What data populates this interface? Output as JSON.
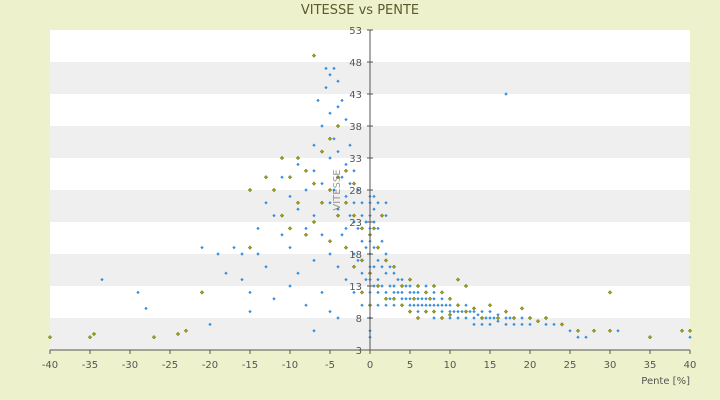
{
  "chart_data": {
    "type": "scatter",
    "title": "VITESSE vs PENTE",
    "xlabel": "Pente [%]",
    "ylabel": "VITESSE",
    "xlim": [
      -40,
      40
    ],
    "ylim": [
      3,
      53
    ],
    "x_ticks": [
      "-40",
      "-35",
      "-30",
      "-25",
      "-20",
      "-15",
      "-10",
      "-5",
      "0",
      "5",
      "10",
      "15",
      "20",
      "25",
      "30",
      "35",
      "40"
    ],
    "y_ticks": [
      "3",
      "8",
      "13",
      "18",
      "23",
      "28",
      "33",
      "38",
      "43",
      "48",
      "53"
    ],
    "grid": "horizontal-bands",
    "legend": "none",
    "colors": {
      "series_a": "#3a8fd8",
      "series_b": "#9aa018",
      "band": "#efefef",
      "axis": "#555555"
    },
    "series": [
      {
        "color": "#3a8fd8",
        "points": [
          [
            -33.5,
            14
          ],
          [
            -29,
            12
          ],
          [
            -28,
            9.5
          ],
          [
            -21,
            12
          ],
          [
            -21,
            19
          ],
          [
            -20,
            7
          ],
          [
            -19,
            18
          ],
          [
            -18,
            15
          ],
          [
            -17,
            19
          ],
          [
            -16,
            18
          ],
          [
            -16,
            14
          ],
          [
            -15,
            12
          ],
          [
            -15,
            9
          ],
          [
            -14,
            22
          ],
          [
            -14,
            18
          ],
          [
            -13,
            16
          ],
          [
            -13,
            26
          ],
          [
            -12,
            24
          ],
          [
            -12,
            11
          ],
          [
            -11,
            30
          ],
          [
            -11,
            21
          ],
          [
            -10,
            27
          ],
          [
            -10,
            19
          ],
          [
            -10,
            13
          ],
          [
            -9,
            32
          ],
          [
            -9,
            25
          ],
          [
            -9,
            15
          ],
          [
            -8,
            28
          ],
          [
            -8,
            22
          ],
          [
            -8,
            10
          ],
          [
            -7,
            35
          ],
          [
            -7,
            31
          ],
          [
            -7,
            24
          ],
          [
            -7,
            17
          ],
          [
            -7,
            6
          ],
          [
            -6.5,
            42
          ],
          [
            -6,
            38
          ],
          [
            -6,
            29
          ],
          [
            -6,
            21
          ],
          [
            -6,
            12
          ],
          [
            -5.5,
            47
          ],
          [
            -5.5,
            44
          ],
          [
            -5,
            46
          ],
          [
            -5,
            40
          ],
          [
            -5,
            33
          ],
          [
            -5,
            26
          ],
          [
            -5,
            18
          ],
          [
            -5,
            9
          ],
          [
            -4.5,
            47
          ],
          [
            -4.5,
            36
          ],
          [
            -4.5,
            28
          ],
          [
            -4,
            45
          ],
          [
            -4,
            41
          ],
          [
            -4,
            34
          ],
          [
            -4,
            25
          ],
          [
            -4,
            16
          ],
          [
            -4,
            8
          ],
          [
            -3.5,
            42
          ],
          [
            -3.5,
            30
          ],
          [
            -3.5,
            21
          ],
          [
            -3,
            39
          ],
          [
            -3,
            32
          ],
          [
            -3,
            27
          ],
          [
            -3,
            22
          ],
          [
            -3,
            14
          ],
          [
            -2.5,
            35
          ],
          [
            -2.5,
            29
          ],
          [
            -2.5,
            24
          ],
          [
            -2,
            31
          ],
          [
            -2,
            26
          ],
          [
            -2,
            23
          ],
          [
            -2,
            18
          ],
          [
            -2,
            12
          ],
          [
            -1.5,
            28
          ],
          [
            -1.5,
            22
          ],
          [
            -1.5,
            17
          ],
          [
            -1,
            26
          ],
          [
            -1,
            24
          ],
          [
            -1,
            20
          ],
          [
            -1,
            15
          ],
          [
            -1,
            10
          ],
          [
            -0.5,
            23
          ],
          [
            -0.5,
            19
          ],
          [
            -0.5,
            14
          ],
          [
            0,
            27
          ],
          [
            0,
            26
          ],
          [
            0,
            24
          ],
          [
            0,
            22
          ],
          [
            0,
            20
          ],
          [
            0,
            18
          ],
          [
            0,
            16
          ],
          [
            0,
            14
          ],
          [
            0,
            12
          ],
          [
            0,
            10
          ],
          [
            0,
            8
          ],
          [
            0,
            6
          ],
          [
            0,
            5
          ],
          [
            0.5,
            27
          ],
          [
            0.5,
            25
          ],
          [
            0.5,
            23
          ],
          [
            0.5,
            19
          ],
          [
            0.5,
            16
          ],
          [
            0.5,
            13
          ],
          [
            1,
            26
          ],
          [
            1,
            22
          ],
          [
            1,
            17
          ],
          [
            1,
            14
          ],
          [
            1,
            12
          ],
          [
            1,
            10
          ],
          [
            1.5,
            20
          ],
          [
            1.5,
            16
          ],
          [
            1.5,
            13
          ],
          [
            2,
            26
          ],
          [
            2,
            24
          ],
          [
            2,
            18
          ],
          [
            2,
            15
          ],
          [
            2,
            12
          ],
          [
            2,
            10
          ],
          [
            2.5,
            16
          ],
          [
            2.5,
            13
          ],
          [
            2.5,
            11
          ],
          [
            3,
            15
          ],
          [
            3,
            13
          ],
          [
            3,
            12
          ],
          [
            3,
            10
          ],
          [
            3.5,
            14
          ],
          [
            3.5,
            12
          ],
          [
            4,
            14
          ],
          [
            4,
            12
          ],
          [
            4,
            11
          ],
          [
            4,
            10
          ],
          [
            4.5,
            13
          ],
          [
            4.5,
            11
          ],
          [
            5,
            13
          ],
          [
            5,
            12
          ],
          [
            5,
            11
          ],
          [
            5,
            10
          ],
          [
            5,
            9
          ],
          [
            5.5,
            12
          ],
          [
            5.5,
            10
          ],
          [
            6,
            12
          ],
          [
            6,
            11
          ],
          [
            6,
            10
          ],
          [
            6,
            9
          ],
          [
            6.5,
            11
          ],
          [
            6.5,
            10
          ],
          [
            7,
            13
          ],
          [
            7,
            11
          ],
          [
            7,
            10
          ],
          [
            7,
            9
          ],
          [
            7.5,
            10
          ],
          [
            8,
            12
          ],
          [
            8,
            11
          ],
          [
            8,
            10
          ],
          [
            8,
            9
          ],
          [
            8,
            8
          ],
          [
            8.5,
            10
          ],
          [
            9,
            11
          ],
          [
            9,
            10
          ],
          [
            9,
            9
          ],
          [
            9,
            8
          ],
          [
            9.5,
            10
          ],
          [
            10,
            11
          ],
          [
            10,
            10
          ],
          [
            10,
            9
          ],
          [
            10,
            8
          ],
          [
            10.5,
            9
          ],
          [
            11,
            10
          ],
          [
            11,
            9
          ],
          [
            11,
            8
          ],
          [
            11.5,
            9
          ],
          [
            12,
            10
          ],
          [
            12,
            9
          ],
          [
            12,
            8
          ],
          [
            12.5,
            9
          ],
          [
            13,
            9
          ],
          [
            13,
            8
          ],
          [
            13,
            7
          ],
          [
            13.5,
            8.5
          ],
          [
            14,
            9
          ],
          [
            14,
            8
          ],
          [
            14,
            7
          ],
          [
            14.5,
            8
          ],
          [
            15,
            9
          ],
          [
            15,
            8
          ],
          [
            15,
            7
          ],
          [
            15.5,
            8
          ],
          [
            16,
            8.5
          ],
          [
            16,
            7.5
          ],
          [
            17,
            8
          ],
          [
            17,
            7
          ],
          [
            17,
            43
          ],
          [
            17.5,
            8
          ],
          [
            18,
            8
          ],
          [
            18,
            7
          ],
          [
            19,
            8
          ],
          [
            19,
            7
          ],
          [
            20,
            8
          ],
          [
            20,
            7
          ],
          [
            21,
            7.5
          ],
          [
            22,
            8
          ],
          [
            22,
            7
          ],
          [
            23,
            7
          ],
          [
            25,
            6
          ],
          [
            26,
            5
          ],
          [
            27,
            5
          ],
          [
            31,
            6
          ],
          [
            40,
            5
          ]
        ]
      },
      {
        "color": "#9aa018",
        "points": [
          [
            -40,
            5
          ],
          [
            -35,
            5
          ],
          [
            -34.5,
            5.5
          ],
          [
            -27,
            5
          ],
          [
            -24,
            5.5
          ],
          [
            -23,
            6
          ],
          [
            -21,
            12
          ],
          [
            -15,
            19
          ],
          [
            -15,
            28
          ],
          [
            -13,
            30
          ],
          [
            -12,
            28
          ],
          [
            -11,
            24
          ],
          [
            -11,
            33
          ],
          [
            -10,
            22
          ],
          [
            -10,
            30
          ],
          [
            -9,
            26
          ],
          [
            -9,
            33
          ],
          [
            -8,
            31
          ],
          [
            -8,
            21
          ],
          [
            -7,
            49
          ],
          [
            -7,
            23
          ],
          [
            -7,
            29
          ],
          [
            -6,
            26
          ],
          [
            -6,
            34
          ],
          [
            -5,
            28
          ],
          [
            -5,
            36
          ],
          [
            -5,
            20
          ],
          [
            -4,
            30
          ],
          [
            -4,
            24
          ],
          [
            -4,
            38
          ],
          [
            -3,
            31
          ],
          [
            -3,
            26
          ],
          [
            -3,
            19
          ],
          [
            -2,
            29
          ],
          [
            -2,
            24
          ],
          [
            -2,
            16
          ],
          [
            -1,
            22
          ],
          [
            -1,
            17
          ],
          [
            -1,
            12
          ],
          [
            0,
            21
          ],
          [
            0,
            15
          ],
          [
            0,
            10
          ],
          [
            0.5,
            22
          ],
          [
            1,
            19
          ],
          [
            1,
            13
          ],
          [
            1.5,
            24
          ],
          [
            2,
            17
          ],
          [
            2,
            11
          ],
          [
            3,
            16
          ],
          [
            3,
            11
          ],
          [
            4,
            13
          ],
          [
            4,
            10
          ],
          [
            5,
            14
          ],
          [
            5,
            9
          ],
          [
            5.5,
            11
          ],
          [
            6,
            13
          ],
          [
            6,
            8
          ],
          [
            7,
            12
          ],
          [
            7,
            9
          ],
          [
            7.5,
            11
          ],
          [
            8,
            13
          ],
          [
            8,
            9
          ],
          [
            9,
            12
          ],
          [
            9,
            8
          ],
          [
            10,
            11
          ],
          [
            10,
            8.5
          ],
          [
            11,
            10
          ],
          [
            11,
            14
          ],
          [
            12,
            9
          ],
          [
            12,
            13
          ],
          [
            13,
            9.5
          ],
          [
            14,
            8
          ],
          [
            15,
            10
          ],
          [
            16,
            8
          ],
          [
            17,
            9
          ],
          [
            18,
            8
          ],
          [
            19,
            9.5
          ],
          [
            20,
            8
          ],
          [
            21,
            7.5
          ],
          [
            22,
            8
          ],
          [
            24,
            7
          ],
          [
            26,
            6
          ],
          [
            28,
            6
          ],
          [
            30,
            12
          ],
          [
            30,
            6
          ],
          [
            35,
            5
          ],
          [
            39,
            6
          ],
          [
            40,
            6
          ]
        ]
      }
    ]
  }
}
